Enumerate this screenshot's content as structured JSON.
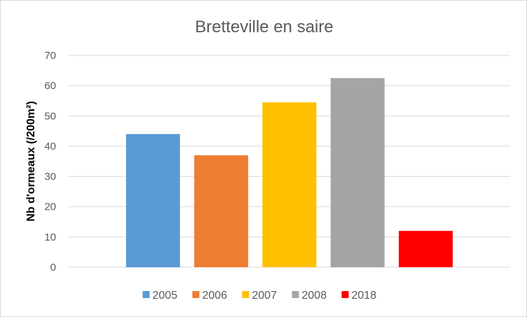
{
  "chart_data": {
    "type": "bar",
    "title": "Bretteville en saire",
    "xlabel": "",
    "ylabel": "Nb d'ormeaux (/200m²)",
    "ylim": [
      0,
      70
    ],
    "yticks": [
      0,
      10,
      20,
      30,
      40,
      50,
      60,
      70
    ],
    "grid": true,
    "legend_position": "bottom",
    "series": [
      {
        "name": "2005",
        "value": 44,
        "color": "#5b9bd5"
      },
      {
        "name": "2006",
        "value": 37,
        "color": "#ed7d31"
      },
      {
        "name": "2007",
        "value": 54.5,
        "color": "#ffc000"
      },
      {
        "name": "2008",
        "value": 62.5,
        "color": "#a5a5a5"
      },
      {
        "name": "2018",
        "value": 12,
        "color": "#ff0000"
      }
    ],
    "gridline_color": "#d9d9d9",
    "axis_color": "#d9d9d9"
  }
}
